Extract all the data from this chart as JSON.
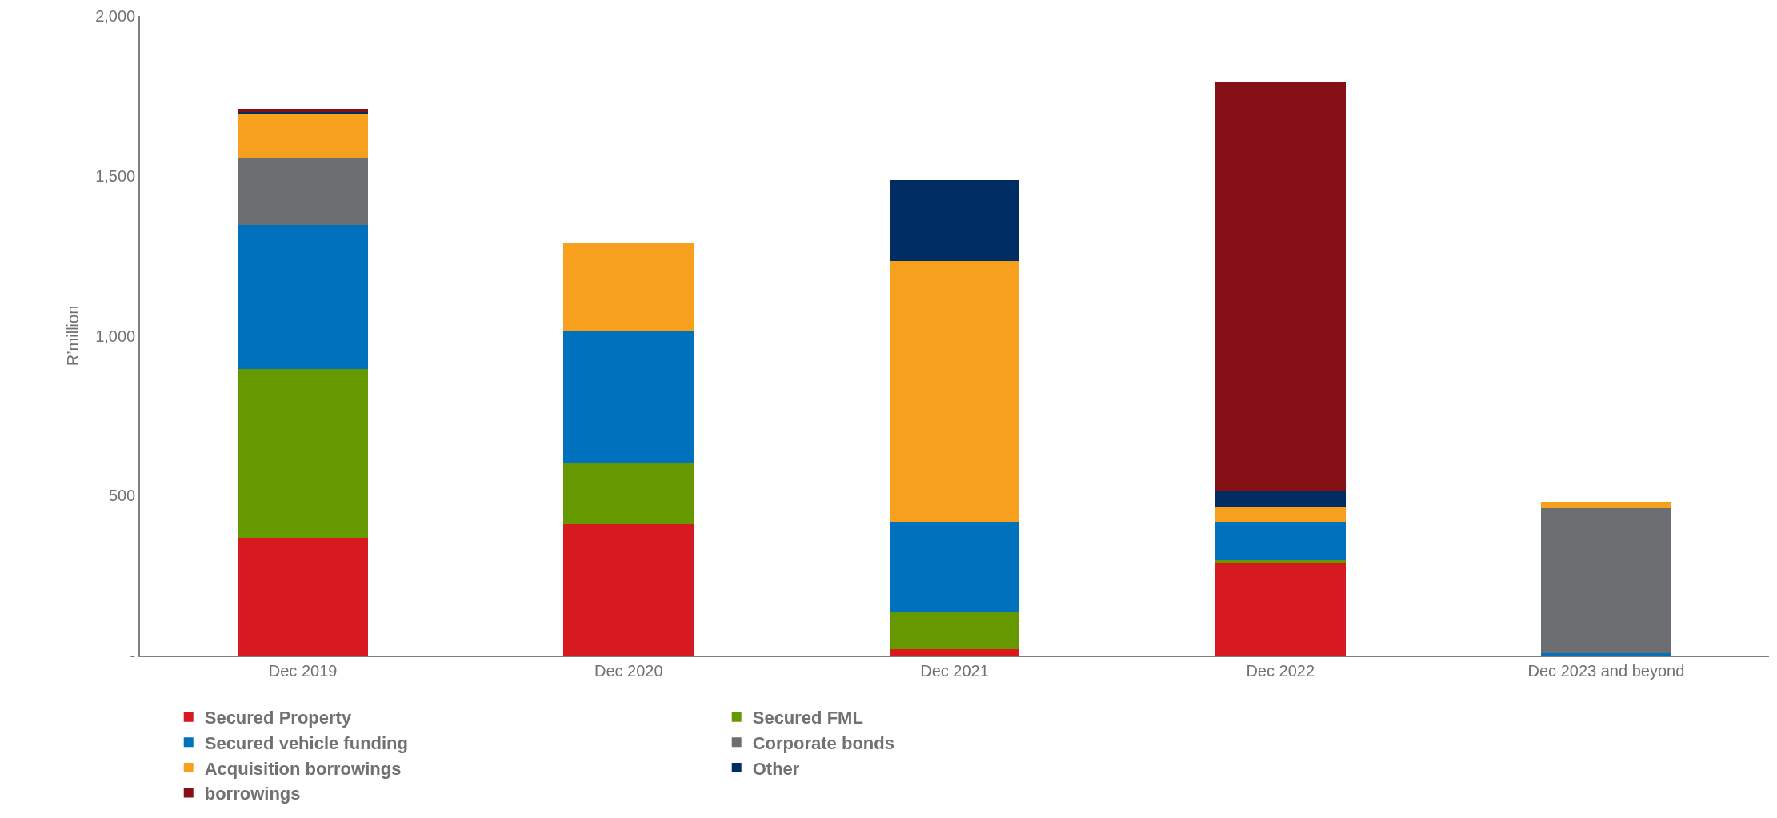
{
  "chart_data": {
    "type": "bar",
    "stacked": true,
    "ylabel": "R’million",
    "categories": [
      "Dec 2019",
      "Dec 2020",
      "Dec 2021",
      "Dec 2022",
      "Dec 2023 and beyond"
    ],
    "series": [
      {
        "name": "Secured Property",
        "color": "#d71920",
        "values": [
          369,
          411,
          21,
          290,
          0
        ]
      },
      {
        "name": "Secured FML",
        "color": "#669900",
        "values": [
          527,
          192,
          113,
          7,
          0
        ]
      },
      {
        "name": "Secured vehicle funding",
        "color": "#0071bc",
        "values": [
          451,
          413,
          283,
          120,
          8
        ]
      },
      {
        "name": "Corporate bonds",
        "color": "#6d6e71",
        "values": [
          208,
          0,
          0,
          0,
          452
        ]
      },
      {
        "name": "Acquisition borrowings",
        "color": "#f7a01d",
        "values": [
          140,
          275,
          818,
          45,
          21
        ]
      },
      {
        "name": "Other",
        "color": "#002d62",
        "values": [
          5,
          0,
          253,
          53,
          0
        ]
      },
      {
        "name": "borrowings",
        "color": "#840f15",
        "values": [
          10,
          0,
          0,
          1277,
          0
        ]
      }
    ],
    "ylim": [
      0,
      2000
    ],
    "yticks": [
      {
        "value": 0,
        "label": "-"
      },
      500,
      {
        "value": 1000,
        "label": "1,000"
      },
      {
        "value": 1500,
        "label": "1,500"
      },
      {
        "value": 2000,
        "label": "2,000"
      }
    ],
    "legend": "bottom"
  }
}
